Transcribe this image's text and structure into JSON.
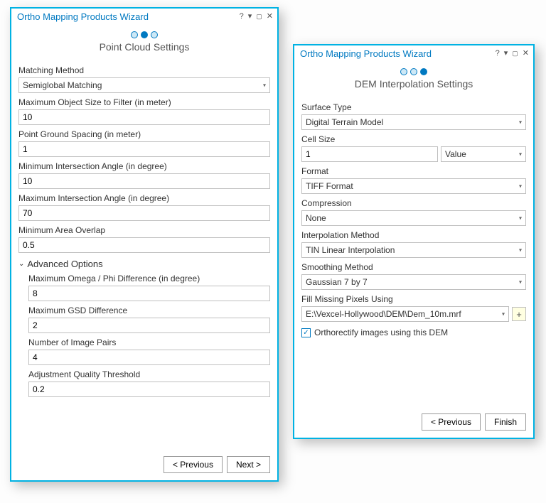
{
  "win1": {
    "title": "Ortho Mapping Products Wizard",
    "subtitle": "Point Cloud Settings",
    "dots_total": 3,
    "active_dot": 1,
    "matching_method_label": "Matching Method",
    "matching_method_value": "Semiglobal Matching",
    "max_obj_label": "Maximum Object Size to Filter (in meter)",
    "max_obj_value": "10",
    "pgs_label": "Point Ground Spacing (in meter)",
    "pgs_value": "1",
    "min_int_label": "Minimum Intersection Angle (in degree)",
    "min_int_value": "10",
    "max_int_label": "Maximum Intersection Angle (in degree)",
    "max_int_value": "70",
    "min_overlap_label": "Minimum Area Overlap",
    "min_overlap_value": "0.5",
    "advanced_label": "Advanced Options",
    "omega_label": "Maximum Omega / Phi Difference (in degree)",
    "omega_value": "8",
    "gsd_label": "Maximum GSD Difference",
    "gsd_value": "2",
    "pairs_label": "Number of Image Pairs",
    "pairs_value": "4",
    "quality_label": "Adjustment Quality Threshold",
    "quality_value": "0.2",
    "prev_btn": "< Previous",
    "next_btn": "Next >"
  },
  "win2": {
    "title": "Ortho Mapping Products Wizard",
    "subtitle": "DEM Interpolation Settings",
    "dots_total": 3,
    "active_dot": 2,
    "surface_label": "Surface Type",
    "surface_value": "Digital Terrain Model",
    "cellsize_label": "Cell Size",
    "cellsize_value": "1",
    "cellsize_unit": "Value",
    "format_label": "Format",
    "format_value": "TIFF Format",
    "compression_label": "Compression",
    "compression_value": "None",
    "interp_label": "Interpolation Method",
    "interp_value": "TIN Linear Interpolation",
    "smooth_label": "Smoothing Method",
    "smooth_value": "Gaussian 7 by 7",
    "fill_label": "Fill Missing Pixels Using",
    "fill_value": "E:\\Vexcel-Hollywood\\DEM\\Dem_10m.mrf",
    "ortho_checkbox": "Orthorectify images using this DEM",
    "prev_btn": "< Previous",
    "finish_btn": "Finish"
  },
  "colors": {
    "accent": "#0079c1",
    "border": "#00b2e3",
    "input_border": "#bfbfbf"
  }
}
